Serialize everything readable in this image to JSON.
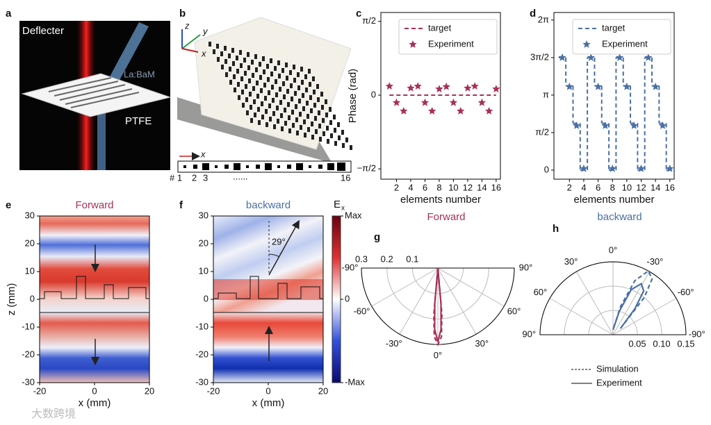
{
  "panel_letters": [
    "a",
    "b",
    "c",
    "d",
    "e",
    "f",
    "g",
    "h"
  ],
  "photo_a": {
    "title": "Deflecter",
    "material": "La:BaM",
    "substrate": "PTFE"
  },
  "photo_b": {
    "axes": [
      "z",
      "y",
      "x"
    ],
    "strip_axis": "x",
    "strip_labels": [
      "# 1",
      "2",
      "3",
      "......",
      "16"
    ]
  },
  "watermark": "大数跨境",
  "chart_data": [
    {
      "type": "scatter_line",
      "ylabel": "Phase (rad)",
      "xlabel": "elements number",
      "caption": "Forward",
      "caption_color": "#a8305a",
      "xlim": [
        -0.2,
        16.6
      ],
      "ylim": [
        -1.79,
        1.76
      ],
      "xticks": [
        2,
        4,
        6,
        8,
        10,
        12,
        14,
        16
      ],
      "yticks": [
        {
          "value": 1.5708,
          "label": "π/2"
        },
        0,
        {
          "value": -1.5708,
          "label": "−π/2"
        }
      ],
      "legend": "upper right",
      "x": [
        1,
        2,
        3,
        4,
        5,
        6,
        7,
        8,
        9,
        10,
        11,
        12,
        13,
        14,
        15,
        16
      ],
      "series": [
        {
          "name": "target",
          "color": "#a8305a",
          "style": "dash",
          "values": [
            0,
            0,
            0,
            0,
            0,
            0,
            0,
            0,
            0,
            0,
            0,
            0,
            0,
            0,
            0,
            0
          ]
        },
        {
          "name": "Experiment",
          "color": "#a8305a",
          "marker": "star",
          "values": [
            0.19,
            -0.16,
            -0.34,
            0.15,
            0.19,
            -0.16,
            -0.34,
            0.13,
            0.18,
            -0.16,
            -0.34,
            0.15,
            0.19,
            -0.16,
            -0.34,
            0.13
          ]
        }
      ]
    },
    {
      "type": "scatter_line",
      "xlabel": "elements number",
      "caption": "backward",
      "caption_color": "#4a6fa5",
      "xlim": [
        -0.16,
        16.6
      ],
      "ylim": [
        -0.38,
        6.6
      ],
      "xticks": [
        2,
        4,
        6,
        8,
        10,
        12,
        14,
        16
      ],
      "yticks": [
        0,
        {
          "value": 1.5708,
          "label": "π/2"
        },
        {
          "value": 3.1416,
          "label": "π"
        },
        {
          "value": 4.7124,
          "label": "3π/2"
        },
        {
          "value": 6.2832,
          "label": "2π"
        }
      ],
      "legend": "upper right",
      "x": [
        1,
        2,
        3,
        4,
        5,
        6,
        7,
        8,
        9,
        10,
        11,
        12,
        13,
        14,
        15,
        16
      ],
      "series": [
        {
          "name": "target",
          "color": "#4a6fa5",
          "style": "dash",
          "step": true,
          "values": [
            4.71,
            3.53,
            1.96,
            0.0,
            4.71,
            3.53,
            1.96,
            0.0,
            4.71,
            3.53,
            1.96,
            0.0,
            4.71,
            3.53,
            1.96,
            0.0
          ]
        },
        {
          "name": "Experiment",
          "color": "#4a6fa5",
          "marker": "star",
          "values": [
            4.71,
            3.49,
            1.86,
            0.06,
            4.71,
            3.49,
            1.86,
            0.06,
            4.71,
            3.49,
            1.86,
            0.06,
            4.71,
            3.49,
            1.86,
            0.06
          ]
        }
      ]
    },
    {
      "type": "heatmap",
      "title": "Forward",
      "title_color": "#a8305a",
      "xlabel": "x (mm)",
      "ylabel": "z (mm)",
      "xlim": [
        -20,
        20
      ],
      "ylim": [
        -30,
        30
      ],
      "xticks": [
        -20,
        0,
        20
      ],
      "yticks": [
        -30,
        -20,
        -10,
        0,
        10,
        20,
        30
      ]
    },
    {
      "type": "heatmap",
      "title": "backward",
      "title_color": "#4a6fa5",
      "xlabel": "x (mm)",
      "annotation": "29°",
      "xlim": [
        -20,
        20
      ],
      "ylim": [
        -30,
        30
      ],
      "xticks": [
        -20,
        0,
        20
      ],
      "yticks": [
        -30,
        -20,
        -10,
        0,
        10,
        20,
        30
      ],
      "colorbar": {
        "label": "E",
        "label_sub": "x",
        "clim": [
          -1,
          1
        ],
        "ticks": [
          {
            "value": 1,
            "label": "Max"
          },
          0,
          {
            "value": -1,
            "label": "-Max"
          }
        ]
      }
    },
    {
      "type": "polar",
      "zero": "bottom",
      "rlim": [
        0,
        0.3
      ],
      "rticks": [
        0.1,
        0.2,
        0.3
      ],
      "thetaticks": [
        {
          "value": -90,
          "label": "-90°"
        },
        {
          "value": -60,
          "label": "-60°"
        },
        {
          "value": -30,
          "label": "-30°"
        },
        {
          "value": 0,
          "label": "0°"
        },
        {
          "value": 30,
          "label": "30°"
        },
        {
          "value": 60,
          "label": "60°"
        },
        {
          "value": 90,
          "label": "90°"
        }
      ],
      "theta": [
        -8,
        -5,
        -3,
        0,
        3,
        5,
        8
      ],
      "series": [
        {
          "color": "#a8305a",
          "style": "dash",
          "values": [
            0,
            0.18,
            0.27,
            0.3,
            0.27,
            0.18,
            0
          ]
        },
        {
          "color": "#a8305a",
          "style": "solid",
          "values": [
            0,
            0.14,
            0.24,
            0.29,
            0.24,
            0.14,
            0
          ]
        }
      ]
    },
    {
      "type": "polar",
      "zero": "top",
      "rlim": [
        0,
        0.15
      ],
      "rticks": [
        0.05,
        {
          "value": 0.1,
          "label": "0.10"
        },
        0.15
      ],
      "thetaticks": [
        {
          "value": -90,
          "label": "-90°"
        },
        {
          "value": -60,
          "label": "-60°"
        },
        {
          "value": -30,
          "label": "-30°"
        },
        {
          "value": 0,
          "label": "0°"
        },
        {
          "value": 30,
          "label": "30°"
        },
        {
          "value": 60,
          "label": "60°"
        },
        {
          "value": 90,
          "label": "90°"
        }
      ],
      "theta": [
        -50,
        -40,
        -35,
        -29,
        -22,
        -15,
        0
      ],
      "series": [
        {
          "name": "Simulation",
          "color": "#4a6fa5",
          "style": "dash",
          "values": [
            0.02,
            0.1,
            0.14,
            0.15,
            0.12,
            0.06,
            0.01
          ]
        },
        {
          "name": "Experiment",
          "color": "#4a6fa5",
          "style": "solid",
          "values": [
            0.02,
            0.07,
            0.11,
            0.12,
            0.1,
            0.05,
            0.01
          ]
        }
      ]
    }
  ]
}
